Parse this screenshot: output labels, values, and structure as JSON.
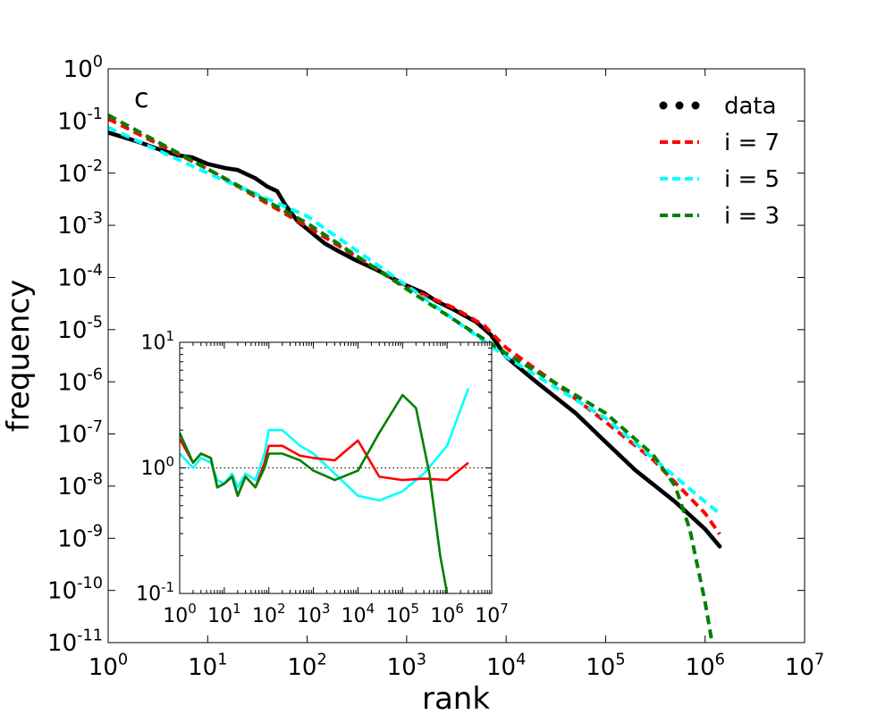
{
  "chart_data": [
    {
      "type": "line",
      "panel_label": "c",
      "xlabel": "rank",
      "ylabel": "frequency",
      "x_scale": "log",
      "y_scale": "log",
      "xlim": [
        1,
        10000000
      ],
      "ylim": [
        1e-11,
        1
      ],
      "x_ticks": [
        {
          "base": "10",
          "exp": "0"
        },
        {
          "base": "10",
          "exp": "1"
        },
        {
          "base": "10",
          "exp": "2"
        },
        {
          "base": "10",
          "exp": "3"
        },
        {
          "base": "10",
          "exp": "4"
        },
        {
          "base": "10",
          "exp": "5"
        },
        {
          "base": "10",
          "exp": "6"
        },
        {
          "base": "10",
          "exp": "7"
        }
      ],
      "y_ticks": [
        {
          "base": "10",
          "exp": "0"
        },
        {
          "base": "10",
          "exp": "-1"
        },
        {
          "base": "10",
          "exp": "-2"
        },
        {
          "base": "10",
          "exp": "-3"
        },
        {
          "base": "10",
          "exp": "-4"
        },
        {
          "base": "10",
          "exp": "-5"
        },
        {
          "base": "10",
          "exp": "-6"
        },
        {
          "base": "10",
          "exp": "-7"
        },
        {
          "base": "10",
          "exp": "-8"
        },
        {
          "base": "10",
          "exp": "-9"
        },
        {
          "base": "10",
          "exp": "-10"
        },
        {
          "base": "10",
          "exp": "-11"
        }
      ],
      "legend": {
        "position": "top-right",
        "entries": [
          {
            "label": "data",
            "color": "#000000",
            "style": "dots"
          },
          {
            "label": "i = 7",
            "color": "#ff0000",
            "style": "dashed"
          },
          {
            "label": "i = 5",
            "color": "#00ffff",
            "style": "dashed"
          },
          {
            "label": "i = 3",
            "color": "#008000",
            "style": "dashed"
          }
        ]
      },
      "series": [
        {
          "name": "data",
          "color": "#000000",
          "style": "dots",
          "x": [
            1,
            2,
            3,
            5,
            7,
            10,
            15,
            20,
            30,
            40,
            50,
            60,
            80,
            100,
            150,
            200,
            300,
            500,
            700,
            1000,
            1500,
            2000,
            3000,
            5000,
            7000,
            10000,
            20000,
            50000,
            100000,
            200000,
            500000,
            1000000,
            1400000
          ],
          "y": [
            0.06,
            0.04,
            0.03,
            0.022,
            0.02,
            0.015,
            0.0125,
            0.0115,
            0.008,
            0.0055,
            0.0045,
            0.0025,
            0.0012,
            0.00085,
            0.00045,
            0.00033,
            0.00022,
            0.00014,
            0.0001,
            7e-05,
            5e-05,
            3.5e-05,
            2.4e-05,
            1.4e-05,
            8e-06,
            3e-06,
            1e-06,
            2.5e-07,
            7e-08,
            2e-08,
            5e-09,
            1.5e-09,
            7e-10
          ]
        },
        {
          "name": "i = 7",
          "color": "#ff0000",
          "style": "dashed",
          "x": [
            1,
            10,
            100,
            1000,
            3000,
            6000,
            10000,
            30000,
            100000,
            300000,
            1000000,
            1400000
          ],
          "y": [
            0.11,
            0.012,
            0.00095,
            6.5e-05,
            2.6e-05,
            1.2e-05,
            4.5e-06,
            1e-06,
            1.7e-07,
            3.2e-08,
            3e-09,
            1.2e-09
          ]
        },
        {
          "name": "i = 5",
          "color": "#00ffff",
          "style": "dashed",
          "x": [
            1,
            10,
            100,
            1000,
            10000,
            100000,
            1000000,
            1400000
          ],
          "y": [
            0.075,
            0.01,
            0.0015,
            7e-05,
            3e-06,
            2e-07,
            5e-09,
            3e-09
          ]
        },
        {
          "name": "i = 3",
          "color": "#008000",
          "style": "dashed",
          "x": [
            1,
            10,
            100,
            1000,
            10000,
            100000,
            300000,
            500000,
            700000,
            1000000,
            1200000
          ],
          "y": [
            0.13,
            0.012,
            0.0011,
            6e-05,
            3.5e-06,
            2.5e-07,
            4e-08,
            1e-08,
            1.5e-09,
            6e-11,
            8e-12
          ]
        }
      ]
    },
    {
      "type": "line",
      "role": "inset",
      "x_scale": "log",
      "y_scale": "log",
      "xlim": [
        1,
        10000000
      ],
      "ylim": [
        0.1,
        10
      ],
      "x_ticks": [
        {
          "base": "10",
          "exp": "0"
        },
        {
          "base": "10",
          "exp": "1"
        },
        {
          "base": "10",
          "exp": "2"
        },
        {
          "base": "10",
          "exp": "3"
        },
        {
          "base": "10",
          "exp": "4"
        },
        {
          "base": "10",
          "exp": "5"
        },
        {
          "base": "10",
          "exp": "6"
        },
        {
          "base": "10",
          "exp": "7"
        }
      ],
      "y_ticks": [
        {
          "base": "10",
          "exp": "1"
        },
        {
          "base": "10",
          "exp": "0"
        },
        {
          "base": "10",
          "exp": "-1"
        }
      ],
      "reference_line": {
        "y": 1,
        "color": "#000000",
        "style": "dotted"
      },
      "series": [
        {
          "name": "i = 7",
          "color": "#ff0000",
          "style": "solid",
          "x": [
            1,
            2,
            3,
            5,
            7,
            10,
            15,
            20,
            30,
            50,
            80,
            100,
            200,
            500,
            1000,
            3000,
            10000,
            30000,
            100000,
            300000,
            1000000,
            3000000
          ],
          "y": [
            1.7,
            1.1,
            1.3,
            1.2,
            0.7,
            0.75,
            0.85,
            0.6,
            0.85,
            0.7,
            1.1,
            1.5,
            1.5,
            1.25,
            1.2,
            1.15,
            1.65,
            0.85,
            0.8,
            0.82,
            0.8,
            1.1
          ]
        },
        {
          "name": "i = 5",
          "color": "#00ffff",
          "style": "solid",
          "x": [
            1,
            2,
            3,
            5,
            7,
            10,
            15,
            20,
            30,
            50,
            80,
            100,
            200,
            500,
            1000,
            3000,
            10000,
            30000,
            100000,
            300000,
            1000000,
            3000000
          ],
          "y": [
            1.3,
            1.0,
            1.2,
            1.1,
            0.8,
            0.75,
            0.9,
            0.7,
            0.9,
            0.8,
            1.3,
            2.0,
            2.0,
            1.5,
            1.3,
            0.9,
            0.6,
            0.55,
            0.65,
            0.9,
            1.5,
            4.3
          ]
        },
        {
          "name": "i = 3",
          "color": "#008000",
          "style": "solid",
          "x": [
            1,
            2,
            3,
            5,
            7,
            10,
            15,
            20,
            30,
            50,
            80,
            100,
            200,
            500,
            1000,
            3000,
            10000,
            30000,
            100000,
            200000,
            400000,
            700000,
            1000000
          ],
          "y": [
            1.9,
            1.1,
            1.3,
            1.2,
            0.7,
            0.75,
            0.85,
            0.6,
            0.85,
            0.7,
            1.0,
            1.3,
            1.3,
            1.15,
            0.95,
            0.8,
            0.95,
            1.9,
            3.8,
            3.0,
            0.9,
            0.2,
            0.1
          ]
        }
      ]
    }
  ]
}
